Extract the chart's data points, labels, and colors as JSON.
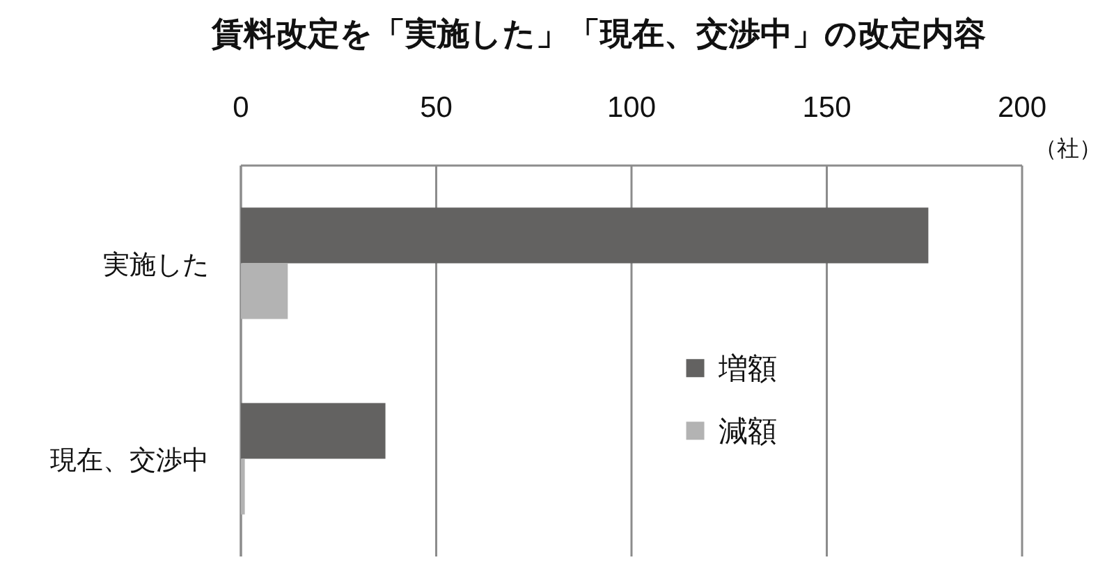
{
  "chart_data": {
    "type": "bar",
    "orientation": "horizontal",
    "title": "賃料改定を「実施した」「現在、交渉中」の改定内容",
    "xlabel": "（社）",
    "categories": [
      "実施した",
      "現在、交渉中"
    ],
    "series": [
      {
        "name": "増額",
        "color": "#636261",
        "values": [
          176,
          37
        ]
      },
      {
        "name": "減額",
        "color": "#b3b3b3",
        "values": [
          12,
          1
        ]
      }
    ],
    "xlim": [
      0,
      200
    ],
    "xticks": [
      0,
      50,
      100,
      150,
      200
    ],
    "grid": "x",
    "legend": "bottom right"
  }
}
